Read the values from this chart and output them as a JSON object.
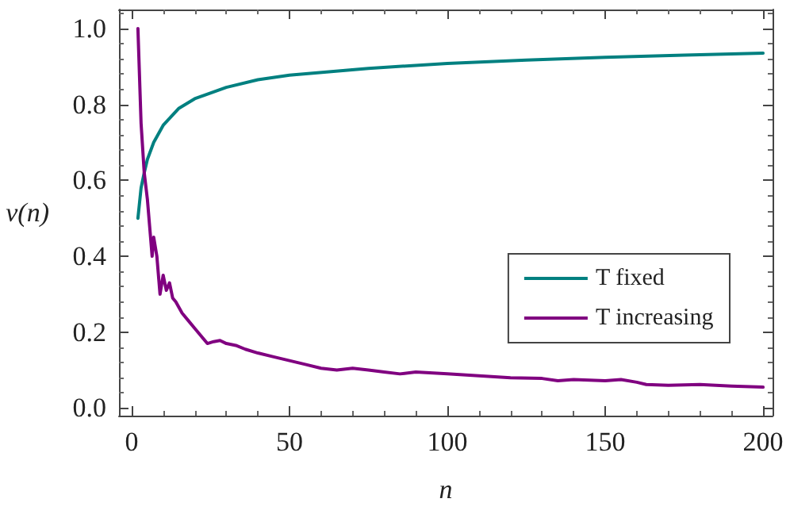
{
  "chart_data": {
    "type": "line",
    "xlabel": "n",
    "ylabel": "v(n)",
    "xlim": [
      -4,
      203
    ],
    "xticks": [
      0,
      50,
      100,
      150,
      200
    ],
    "ylim": [
      -0.02,
      1.05
    ],
    "yticks": [
      {
        "value": 0,
        "label": "0.0"
      },
      0.2,
      0.4,
      0.6,
      0.8,
      {
        "value": 1,
        "label": "1.0"
      }
    ],
    "grid": false,
    "legend": "bottom right",
    "marker": "none",
    "line_style": "solid",
    "series": [
      {
        "name": "T fixed",
        "color": "#008080",
        "x": [
          2,
          3,
          4,
          5,
          7,
          10,
          15,
          20,
          30,
          40,
          50,
          75,
          100,
          125,
          150,
          175,
          200
        ],
        "values": [
          0.5,
          0.58,
          0.62,
          0.655,
          0.7,
          0.745,
          0.79,
          0.815,
          0.845,
          0.865,
          0.877,
          0.895,
          0.908,
          0.917,
          0.924,
          0.93,
          0.935
        ]
      },
      {
        "name": "T increasing",
        "color": "#800080",
        "x": [
          2,
          3,
          4,
          5,
          6,
          6.5,
          7,
          8,
          9,
          10,
          11,
          12,
          13,
          14,
          16,
          18,
          20,
          22,
          24,
          26,
          28,
          30,
          33,
          36,
          40,
          45,
          50,
          55,
          60,
          65,
          70,
          75,
          80,
          85,
          90,
          100,
          110,
          120,
          130,
          135,
          140,
          150,
          155,
          160,
          163,
          170,
          180,
          190,
          200
        ],
        "values": [
          1.0,
          0.75,
          0.62,
          0.55,
          0.45,
          0.4,
          0.45,
          0.4,
          0.3,
          0.35,
          0.31,
          0.33,
          0.29,
          0.28,
          0.25,
          0.23,
          0.21,
          0.19,
          0.17,
          0.175,
          0.178,
          0.17,
          0.165,
          0.155,
          0.145,
          0.135,
          0.125,
          0.115,
          0.105,
          0.1,
          0.105,
          0.1,
          0.095,
          0.09,
          0.095,
          0.09,
          0.085,
          0.08,
          0.078,
          0.072,
          0.075,
          0.072,
          0.075,
          0.068,
          0.062,
          0.06,
          0.062,
          0.058,
          0.055
        ]
      }
    ]
  }
}
